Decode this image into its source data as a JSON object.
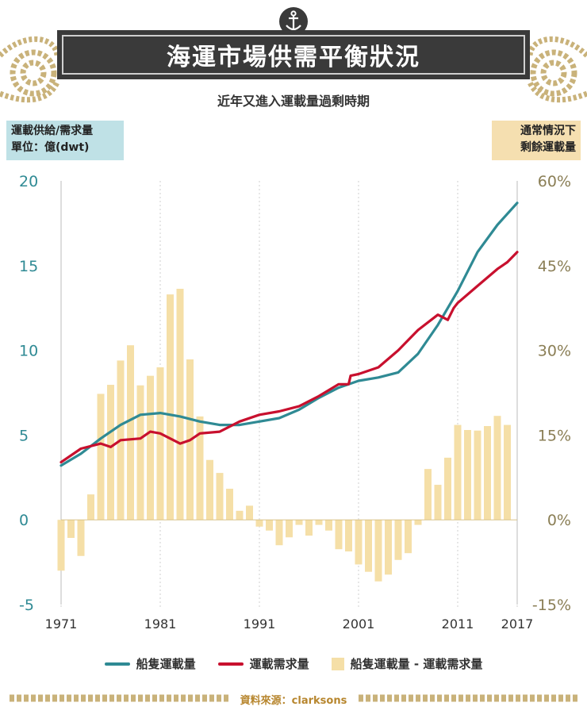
{
  "header": {
    "title": "海運市場供需平衡狀況",
    "subtitle": "近年又進入運載量過剩時期",
    "left_axis_box": [
      "運載供給/需求量",
      "單位：億(dwt)"
    ],
    "right_axis_box": [
      "通常情況下",
      "剩餘運載量"
    ],
    "anchor_icon": "anchor-icon"
  },
  "footer": {
    "source": "資料來源：clarksons"
  },
  "colors": {
    "supply": "#2f8a94",
    "demand": "#c8102e",
    "bars": "#f5dfa7",
    "left_axis": "#2f8a94",
    "right_axis": "#8a7e55",
    "rope": "#c9b27a"
  },
  "chart_data": {
    "type": "bar+line",
    "title": "海運市場供需平衡狀況",
    "subtitle": "近年又進入運載量過剩時期",
    "x_tick_labels": [
      "1971",
      "1981",
      "1991",
      "2001",
      "2011",
      "2017"
    ],
    "x_ticks": [
      1971,
      1981,
      1991,
      2001,
      2011,
      2017
    ],
    "xlim": [
      1971,
      2017
    ],
    "left_axis": {
      "label": "運載供給/需求量 單位：億(dwt)",
      "ylim": [
        -5,
        20
      ],
      "ticks": [
        -5,
        0,
        5,
        10,
        15,
        20
      ],
      "tick_labels": [
        "-5",
        "0",
        "5",
        "10",
        "15",
        "20"
      ]
    },
    "right_axis": {
      "label": "通常情況下 剩餘運載量",
      "ylim": [
        -15,
        60
      ],
      "ticks": [
        -15,
        0,
        15,
        30,
        45,
        60
      ],
      "tick_labels": [
        "-15%",
        "0%",
        "15%",
        "30%",
        "45%",
        "60%"
      ]
    },
    "legend": [
      "船隻運載量",
      "運載需求量",
      "船隻運載量 - 運載需求量"
    ],
    "series": [
      {
        "name": "船隻運載量",
        "type": "line",
        "axis": "left",
        "x": [
          1971,
          1973,
          1975,
          1977,
          1979,
          1981,
          1983,
          1985,
          1987,
          1989,
          1991,
          1993,
          1995,
          1997,
          1999,
          2001,
          2003,
          2005,
          2007,
          2009,
          2011,
          2013,
          2015,
          2017
        ],
        "values": [
          3.2,
          3.9,
          4.8,
          5.6,
          6.2,
          6.3,
          6.1,
          5.8,
          5.6,
          5.6,
          5.8,
          6.0,
          6.5,
          7.2,
          7.8,
          8.2,
          8.4,
          8.7,
          9.8,
          11.5,
          13.5,
          15.8,
          17.4,
          18.7
        ]
      },
      {
        "name": "運載需求量",
        "type": "line",
        "axis": "left",
        "x": [
          1971,
          1973,
          1975,
          1976,
          1977,
          1979,
          1980,
          1981,
          1983,
          1984,
          1985,
          1987,
          1989,
          1991,
          1993,
          1995,
          1997,
          1999,
          2000,
          2000.2,
          2001,
          2003,
          2005,
          2007,
          2009,
          2010,
          2010.6,
          2011,
          2013,
          2015,
          2016,
          2017
        ],
        "values": [
          3.4,
          4.2,
          4.5,
          4.3,
          4.7,
          4.8,
          5.2,
          5.1,
          4.5,
          4.7,
          5.1,
          5.2,
          5.8,
          6.2,
          6.4,
          6.7,
          7.3,
          8.0,
          8.0,
          8.5,
          8.6,
          9.0,
          10.0,
          11.2,
          12.1,
          11.8,
          12.5,
          12.8,
          13.8,
          14.8,
          15.2,
          15.8
        ]
      },
      {
        "name": "船隻運載量 - 運載需求量",
        "type": "bar",
        "axis": "right",
        "x": [
          1971,
          1972,
          1973,
          1974,
          1975,
          1976,
          1977,
          1978,
          1979,
          1980,
          1981,
          1982,
          1983,
          1984,
          1985,
          1986,
          1987,
          1988,
          1989,
          1990,
          1991,
          1992,
          1993,
          1994,
          1995,
          1996,
          1997,
          1998,
          1999,
          2000,
          2001,
          2002,
          2003,
          2004,
          2005,
          2006,
          2007,
          2008,
          2009,
          2010,
          2011,
          2012,
          2013,
          2014,
          2015,
          2016,
          2017
        ],
        "values": [
          -9.0,
          -3.2,
          -6.4,
          4.5,
          22.3,
          23.9,
          28.2,
          30.9,
          23.8,
          25.5,
          27.0,
          39.9,
          40.9,
          28.4,
          18.3,
          10.6,
          8.3,
          5.5,
          1.6,
          2.5,
          -1.2,
          -1.9,
          -4.5,
          -3.1,
          -0.9,
          -2.8,
          -0.9,
          -1.9,
          -5.2,
          -5.6,
          -7.9,
          -9.2,
          -10.9,
          -9.7,
          -7.1,
          -5.9,
          -0.9,
          9.0,
          6.2,
          11.0,
          16.8,
          15.9,
          15.8,
          16.6,
          18.4,
          16.8,
          null
        ]
      }
    ],
    "grid": "vertical dotted"
  }
}
